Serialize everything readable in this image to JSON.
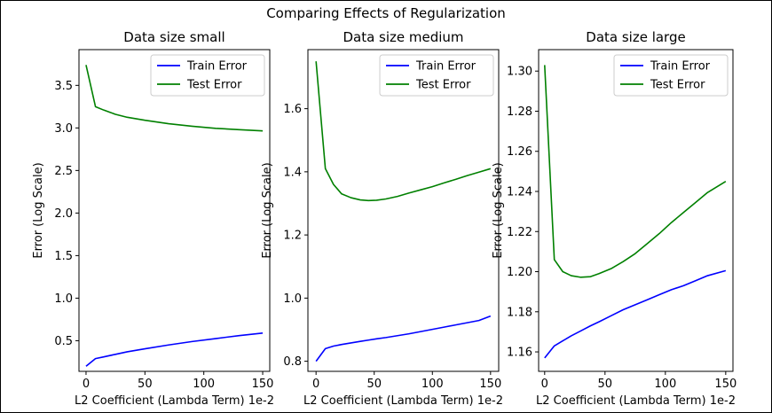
{
  "figure": {
    "title": "Comparing Effects of Regularization",
    "colors": {
      "train": "#0000ff",
      "test": "#008000",
      "axis": "#000000",
      "background": "#ffffff"
    }
  },
  "chart_data": [
    {
      "type": "line",
      "title": "Data size small",
      "xlabel": "L2 Coefficient (Lambda Term) 1e-2",
      "ylabel": "Error (Log Scale)",
      "xlim": [
        -6,
        156
      ],
      "ylim": [
        0.14,
        3.92
      ],
      "grid": false,
      "legend_position": "top-right",
      "x_ticks": [
        0,
        50,
        100,
        150
      ],
      "y_ticks": [
        0.5,
        1.0,
        1.5,
        2.0,
        2.5,
        3.0,
        3.5
      ],
      "y_tick_labels": [
        "0.5",
        "1.0",
        "1.5",
        "2.0",
        "2.5",
        "3.0",
        "3.5"
      ],
      "x": [
        0,
        8,
        15,
        25,
        35,
        50,
        70,
        90,
        110,
        130,
        150
      ],
      "series": [
        {
          "name": "Train Error",
          "color": "#0000ff",
          "values": [
            0.2,
            0.29,
            0.31,
            0.34,
            0.37,
            0.405,
            0.45,
            0.49,
            0.525,
            0.56,
            0.59
          ]
        },
        {
          "name": "Test Error",
          "color": "#008000",
          "values": [
            3.74,
            3.25,
            3.21,
            3.16,
            3.125,
            3.09,
            3.05,
            3.02,
            2.995,
            2.98,
            2.965
          ]
        }
      ]
    },
    {
      "type": "line",
      "title": "Data size medium",
      "xlabel": "L2 Coefficient (Lambda Term) 1e-2",
      "ylabel": "Error (Log Scale)",
      "xlim": [
        -7,
        157
      ],
      "ylim": [
        0.768,
        1.787
      ],
      "grid": false,
      "legend_position": "top-right",
      "x_ticks": [
        0,
        50,
        100,
        150
      ],
      "y_ticks": [
        0.8,
        1.0,
        1.2,
        1.4,
        1.6
      ],
      "y_tick_labels": [
        "0.8",
        "1.0",
        "1.2",
        "1.4",
        "1.6"
      ],
      "x": [
        0,
        8,
        15,
        22,
        30,
        38,
        45,
        52,
        60,
        70,
        80,
        90,
        100,
        110,
        120,
        130,
        140,
        150
      ],
      "series": [
        {
          "name": "Train Error",
          "color": "#0000ff",
          "values": [
            0.8,
            0.84,
            0.848,
            0.853,
            0.858,
            0.863,
            0.867,
            0.871,
            0.875,
            0.881,
            0.887,
            0.894,
            0.901,
            0.908,
            0.915,
            0.922,
            0.929,
            0.943
          ]
        },
        {
          "name": "Test Error",
          "color": "#008000",
          "values": [
            1.75,
            1.41,
            1.36,
            1.33,
            1.318,
            1.311,
            1.309,
            1.31,
            1.314,
            1.322,
            1.333,
            1.343,
            1.353,
            1.365,
            1.376,
            1.388,
            1.399,
            1.41
          ]
        }
      ]
    },
    {
      "type": "line",
      "title": "Data size large",
      "xlabel": "L2 Coefficient (Lambda Term) 1e-2",
      "ylabel": "Error (Log Scale)",
      "xlim": [
        -5,
        156
      ],
      "ylim": [
        1.1503,
        1.3107
      ],
      "grid": false,
      "legend_position": "top-right",
      "x_ticks": [
        0,
        50,
        100,
        150
      ],
      "y_ticks": [
        1.16,
        1.18,
        1.2,
        1.22,
        1.24,
        1.26,
        1.28,
        1.3
      ],
      "y_tick_labels": [
        "1.16",
        "1.18",
        "1.20",
        "1.22",
        "1.24",
        "1.26",
        "1.28",
        "1.30"
      ],
      "x": [
        0,
        8,
        15,
        22,
        30,
        38,
        45,
        55,
        65,
        75,
        85,
        95,
        105,
        115,
        125,
        135,
        150
      ],
      "series": [
        {
          "name": "Train Error",
          "color": "#0000ff",
          "values": [
            1.157,
            1.163,
            1.1655,
            1.168,
            1.1705,
            1.173,
            1.175,
            1.178,
            1.181,
            1.1835,
            1.186,
            1.1885,
            1.191,
            1.193,
            1.1955,
            1.198,
            1.2005
          ]
        },
        {
          "name": "Test Error",
          "color": "#008000",
          "values": [
            1.303,
            1.206,
            1.2,
            1.198,
            1.1972,
            1.1975,
            1.199,
            1.2015,
            1.205,
            1.209,
            1.214,
            1.219,
            1.2245,
            1.2295,
            1.2345,
            1.2395,
            1.245
          ]
        }
      ]
    }
  ]
}
